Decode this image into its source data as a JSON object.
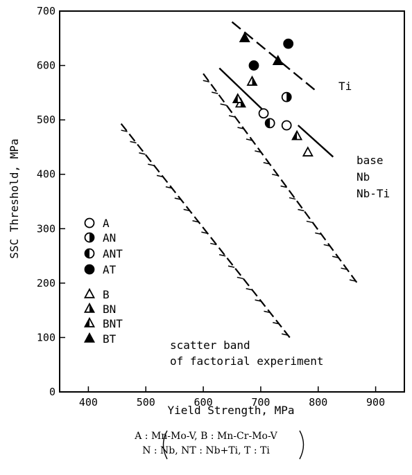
{
  "chart_data": {
    "type": "scatter",
    "xlabel": "Yield Strength, MPa",
    "ylabel": "SSC Threshold, MPa",
    "xlim": [
      350,
      950
    ],
    "ylim": [
      0,
      700
    ],
    "xticks": [
      400,
      500,
      600,
      700,
      800,
      900
    ],
    "yticks": [
      0,
      100,
      200,
      300,
      400,
      500,
      600,
      700
    ],
    "legend": {
      "position": "left-middle",
      "entries": [
        {
          "label": "A",
          "marker": "circle-open"
        },
        {
          "label": "AN",
          "marker": "circle-half-right"
        },
        {
          "label": "ANT",
          "marker": "circle-half-left"
        },
        {
          "label": "AT",
          "marker": "circle-filled"
        },
        {
          "label": "B",
          "marker": "triangle-open"
        },
        {
          "label": "BN",
          "marker": "triangle-half-right"
        },
        {
          "label": "BNT",
          "marker": "triangle-half-left"
        },
        {
          "label": "BT",
          "marker": "triangle-filled"
        }
      ]
    },
    "series": [
      {
        "name": "A",
        "marker": "circle-open",
        "points": [
          {
            "x": 705,
            "y": 512
          },
          {
            "x": 745,
            "y": 490
          }
        ]
      },
      {
        "name": "AN",
        "marker": "circle-half-right",
        "points": [
          {
            "x": 745,
            "y": 542
          }
        ]
      },
      {
        "name": "ANT",
        "marker": "circle-half-left",
        "points": [
          {
            "x": 716,
            "y": 494
          }
        ]
      },
      {
        "name": "AT",
        "marker": "circle-filled",
        "points": [
          {
            "x": 688,
            "y": 600
          },
          {
            "x": 748,
            "y": 640
          }
        ]
      },
      {
        "name": "B",
        "marker": "triangle-open",
        "points": [
          {
            "x": 782,
            "y": 440
          }
        ]
      },
      {
        "name": "BN",
        "marker": "triangle-half-right",
        "points": [
          {
            "x": 685,
            "y": 570
          },
          {
            "x": 665,
            "y": 530
          }
        ]
      },
      {
        "name": "BNT",
        "marker": "triangle-half-left",
        "points": [
          {
            "x": 660,
            "y": 538
          },
          {
            "x": 763,
            "y": 470
          }
        ]
      },
      {
        "name": "BT",
        "marker": "triangle-filled",
        "points": [
          {
            "x": 672,
            "y": 650
          },
          {
            "x": 730,
            "y": 608
          }
        ]
      }
    ],
    "trend_lines": [
      {
        "name": "Ti",
        "label": "Ti",
        "style": "dashed",
        "x": [
          650,
          800
        ],
        "y": [
          680,
          550
        ]
      },
      {
        "name": "base",
        "style": "solid",
        "x": [
          628,
          712
        ],
        "y": [
          595,
          510
        ]
      },
      {
        "name": "Nb",
        "style": "solid",
        "x": [
          765,
          826
        ],
        "y": [
          490,
          432
        ]
      }
    ],
    "bands": [
      {
        "name": "upper band",
        "style": "dashed-hatched",
        "x": [
          600,
          870
        ],
        "y": [
          585,
          197
        ]
      },
      {
        "name": "lower band",
        "style": "dashed-hatched",
        "x": [
          457,
          752
        ],
        "y": [
          493,
          98
        ]
      }
    ],
    "annotations": {
      "ti_label": "Ti",
      "base_labels": [
        "base",
        "Nb",
        "Nb-Ti"
      ],
      "scatter_band_lines": [
        "scatter band",
        "of factorial experiment"
      ]
    },
    "footnote_lines": [
      "A : Mn-Mo-V, B : Mn-Cr-Mo-V",
      "N : Nb, NT : Nb+Ti, T : Ti"
    ]
  }
}
